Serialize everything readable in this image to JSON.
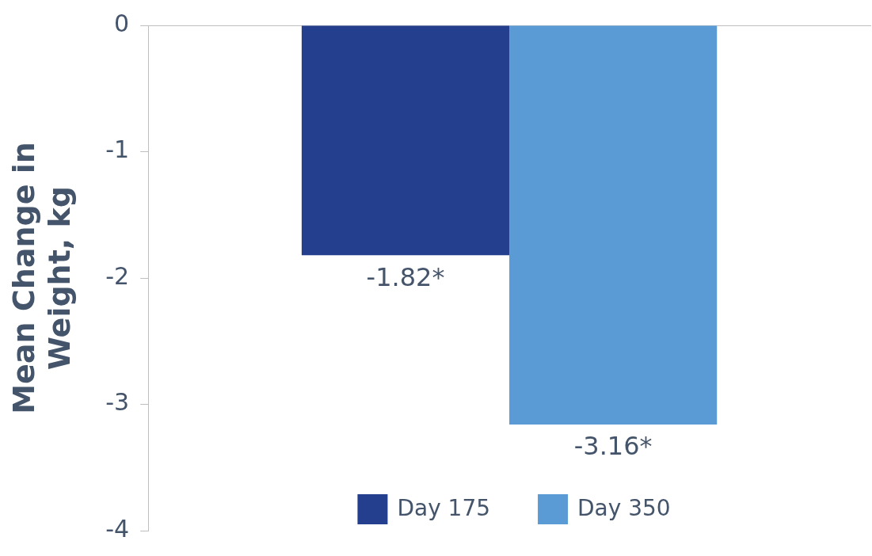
{
  "chart_data": {
    "type": "bar",
    "ylabel": "Mean Change in Weight, kg",
    "categories": [
      null
    ],
    "series": [
      {
        "name": "Day 175",
        "color": "#233f8e",
        "values": [
          -1.82
        ],
        "value_labels": [
          "-1.82*"
        ]
      },
      {
        "name": "Day 350",
        "color": "#5a9bd5",
        "values": [
          -3.16
        ],
        "value_labels": [
          "-3.16*"
        ]
      }
    ],
    "ylim": [
      -4,
      0
    ],
    "yticks": [
      0,
      -1,
      -2,
      -3,
      -4
    ],
    "grid": false,
    "legend": "bottom"
  }
}
